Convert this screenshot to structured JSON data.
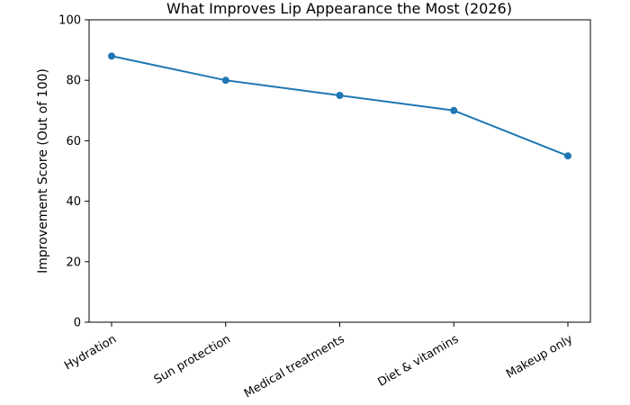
{
  "chart_data": {
    "type": "line",
    "title": "What Improves Lip Appearance the Most (2026)",
    "ylabel": "Improvement Score (Out of 100)",
    "xlabel": "",
    "categories": [
      "Hydration",
      "Sun protection",
      "Medical treatments",
      "Diet & vitamins",
      "Makeup only"
    ],
    "series": [
      {
        "name": "Improvement Score",
        "values": [
          88,
          80,
          75,
          70,
          55
        ]
      }
    ],
    "ylim": [
      0,
      100
    ],
    "yticks": [
      0,
      20,
      40,
      60,
      80,
      100
    ],
    "x_tick_rotation_deg": 30,
    "line_color": "#1f77b4",
    "marker": "circle",
    "marker_color": "#1f77b4",
    "spine_color": "#000000",
    "background_color": "#ffffff",
    "grid": false,
    "legend_position": "none"
  }
}
